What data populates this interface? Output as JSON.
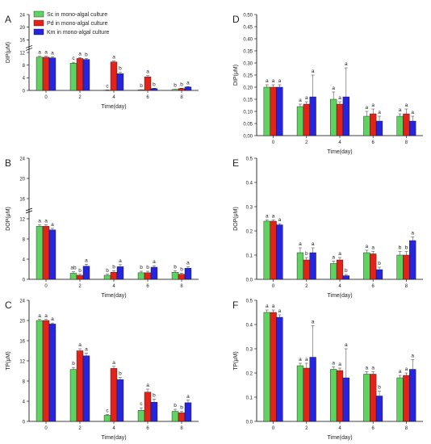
{
  "legend": {
    "items": [
      {
        "label": "Sc in mono-algal culture",
        "color": "#5fd35f"
      },
      {
        "label": "Pd in mono-algal culture",
        "color": "#e2231a"
      },
      {
        "label": "Km in mono-algal culture",
        "color": "#2525e0"
      }
    ]
  },
  "chart_data": [
    {
      "type": "bar",
      "panel_label": "A",
      "xlabel": "Time(day)",
      "ylabel": "DIP(μM)",
      "categories": [
        "0",
        "2",
        "4",
        "6",
        "8"
      ],
      "ylim": [
        0,
        24
      ],
      "yticks": [
        0,
        4,
        8,
        12,
        16,
        20,
        24
      ],
      "y_axis_break": true,
      "series": [
        {
          "name": "Sc in mono-algal culture",
          "values": [
            10.5,
            8.6,
            0.1,
            0.2,
            0.3
          ],
          "errors": [
            0.3,
            0.3,
            0.05,
            0.05,
            0.05
          ],
          "letters": [
            "a",
            "c",
            "c",
            "b",
            "b"
          ]
        },
        {
          "name": "Pd in mono-algal culture",
          "values": [
            10.5,
            10.1,
            9.0,
            4.3,
            0.6
          ],
          "errors": [
            0.3,
            0.3,
            0.3,
            0.4,
            0.1
          ],
          "letters": [
            "a",
            "a",
            "a",
            "a",
            "b"
          ]
        },
        {
          "name": "Km in mono-algal culture",
          "values": [
            10.3,
            9.8,
            5.3,
            0.6,
            1.1
          ],
          "errors": [
            0.3,
            0.3,
            0.4,
            0.1,
            0.1
          ],
          "letters": [
            "a",
            "b",
            "b",
            "b",
            "a"
          ]
        }
      ]
    },
    {
      "type": "bar",
      "panel_label": "B",
      "xlabel": "Time(day)",
      "ylabel": "DOP(μM)",
      "categories": [
        "0",
        "2",
        "4",
        "6",
        "8"
      ],
      "ylim": [
        0,
        24
      ],
      "yticks": [
        0,
        4,
        8,
        12,
        16,
        20,
        24
      ],
      "y_axis_break": true,
      "series": [
        {
          "name": "Sc in mono-algal culture",
          "values": [
            10.5,
            1.2,
            0.8,
            1.3,
            1.4
          ],
          "errors": [
            0.3,
            0.3,
            0.2,
            0.3,
            0.3
          ],
          "letters": [
            "a",
            "ab",
            "b",
            "b",
            "b"
          ]
        },
        {
          "name": "Pd in mono-algal culture",
          "values": [
            10.5,
            0.8,
            1.4,
            1.3,
            1.0
          ],
          "errors": [
            0.3,
            0.2,
            0.3,
            0.3,
            0.2
          ],
          "letters": [
            "a",
            "b",
            "b",
            "b",
            "b"
          ]
        },
        {
          "name": "Km in mono-algal culture",
          "values": [
            9.8,
            2.6,
            2.5,
            2.4,
            2.2
          ],
          "errors": [
            0.3,
            0.4,
            0.4,
            0.3,
            0.3
          ],
          "letters": [
            "a",
            "a",
            "a",
            "a",
            "a"
          ]
        }
      ]
    },
    {
      "type": "bar",
      "panel_label": "C",
      "xlabel": "Time(day)",
      "ylabel": "TP(μM)",
      "categories": [
        "0",
        "2",
        "4",
        "6",
        "8"
      ],
      "ylim": [
        0,
        24
      ],
      "yticks": [
        0,
        4,
        8,
        12,
        16,
        20,
        24
      ],
      "series": [
        {
          "name": "Sc in mono-algal culture",
          "values": [
            20,
            10.3,
            1.2,
            2.2,
            2.0
          ],
          "errors": [
            0.2,
            0.4,
            0.2,
            0.5,
            0.4
          ],
          "letters": [
            "a",
            "b",
            "c",
            "c",
            "b"
          ]
        },
        {
          "name": "Pd in mono-algal culture",
          "values": [
            20,
            14,
            10.5,
            5.8,
            1.7
          ],
          "errors": [
            0.2,
            0.4,
            0.4,
            0.6,
            0.3
          ],
          "letters": [
            "a",
            "a",
            "a",
            "a",
            "b"
          ]
        },
        {
          "name": "Km in mono-algal culture",
          "values": [
            19.3,
            13,
            8.3,
            3.8,
            3.7
          ],
          "errors": [
            0.2,
            0.5,
            0.4,
            0.6,
            0.5
          ],
          "letters": [
            "a",
            "a",
            "b",
            "b",
            "a"
          ]
        }
      ]
    },
    {
      "type": "bar",
      "panel_label": "D",
      "xlabel": "Time(day)",
      "ylabel": "DIP(μM)",
      "categories": [
        "0",
        "2",
        "4",
        "6",
        "8"
      ],
      "ylim": [
        0,
        0.5
      ],
      "yticks": [
        0,
        0.05,
        0.1,
        0.15,
        0.2,
        0.25,
        0.3,
        0.35,
        0.4,
        0.45,
        0.5
      ],
      "series": [
        {
          "name": "Sc in mono-algal culture",
          "values": [
            0.2,
            0.12,
            0.15,
            0.08,
            0.08
          ],
          "errors": [
            0.01,
            0.01,
            0.03,
            0.02,
            0.01
          ],
          "letters": [
            "a",
            "a",
            "a",
            "a",
            "a"
          ]
        },
        {
          "name": "Pd in mono-algal culture",
          "values": [
            0.2,
            0.13,
            0.13,
            0.09,
            0.09
          ],
          "errors": [
            0.01,
            0.01,
            0.01,
            0.02,
            0.02
          ],
          "letters": [
            "a",
            "a",
            "a",
            "a",
            "a"
          ]
        },
        {
          "name": "Km in mono-algal culture",
          "values": [
            0.2,
            0.16,
            0.16,
            0.06,
            0.06
          ],
          "errors": [
            0.01,
            0.09,
            0.12,
            0.02,
            0.02
          ],
          "letters": [
            "a",
            "a",
            "a",
            "a",
            "a"
          ]
        }
      ]
    },
    {
      "type": "bar",
      "panel_label": "E",
      "xlabel": "Time(day)",
      "ylabel": "DOP(μM)",
      "categories": [
        "0",
        "2",
        "4",
        "6",
        "8"
      ],
      "ylim": [
        0,
        0.5
      ],
      "yticks": [
        0,
        0.1,
        0.2,
        0.3,
        0.4,
        0.5
      ],
      "series": [
        {
          "name": "Sc in mono-algal culture",
          "values": [
            0.24,
            0.11,
            0.065,
            0.11,
            0.1
          ],
          "errors": [
            0.005,
            0.02,
            0.01,
            0.01,
            0.015
          ],
          "letters": [
            "a",
            "a",
            "a",
            "a",
            "b"
          ]
        },
        {
          "name": "Pd in mono-algal culture",
          "values": [
            0.24,
            0.08,
            0.08,
            0.105,
            0.1
          ],
          "errors": [
            0.005,
            0.01,
            0.01,
            0.01,
            0.015
          ],
          "letters": [
            "a",
            "b",
            "a",
            "a",
            "b"
          ]
        },
        {
          "name": "Km in mono-algal culture",
          "values": [
            0.225,
            0.11,
            0.015,
            0.04,
            0.16
          ],
          "errors": [
            0.005,
            0.02,
            0.005,
            0.01,
            0.015
          ],
          "letters": [
            "a",
            "a",
            "b",
            "b",
            "a"
          ]
        }
      ]
    },
    {
      "type": "bar",
      "panel_label": "F",
      "xlabel": "Time(day)",
      "ylabel": "TP(μM)",
      "categories": [
        "0",
        "2",
        "4",
        "6",
        "8"
      ],
      "ylim": [
        0,
        0.5
      ],
      "yticks": [
        0,
        0.1,
        0.2,
        0.3,
        0.4,
        0.5
      ],
      "series": [
        {
          "name": "Sc in mono-algal culture",
          "values": [
            0.45,
            0.23,
            0.215,
            0.195,
            0.18
          ],
          "errors": [
            0.01,
            0.01,
            0.01,
            0.01,
            0.01
          ],
          "letters": [
            "a",
            "a",
            "a",
            "a",
            "a"
          ]
        },
        {
          "name": "Pd in mono-algal culture",
          "values": [
            0.45,
            0.22,
            0.21,
            0.195,
            0.19
          ],
          "errors": [
            0.01,
            0.02,
            0.01,
            0.01,
            0.01
          ],
          "letters": [
            "a",
            "a",
            "a",
            "a",
            "a"
          ]
        },
        {
          "name": "Km in mono-algal culture",
          "values": [
            0.43,
            0.265,
            0.18,
            0.105,
            0.215
          ],
          "errors": [
            0.01,
            0.13,
            0.12,
            0.02,
            0.04
          ],
          "letters": [
            "a",
            "a",
            "a",
            "b",
            "a"
          ]
        }
      ]
    }
  ]
}
